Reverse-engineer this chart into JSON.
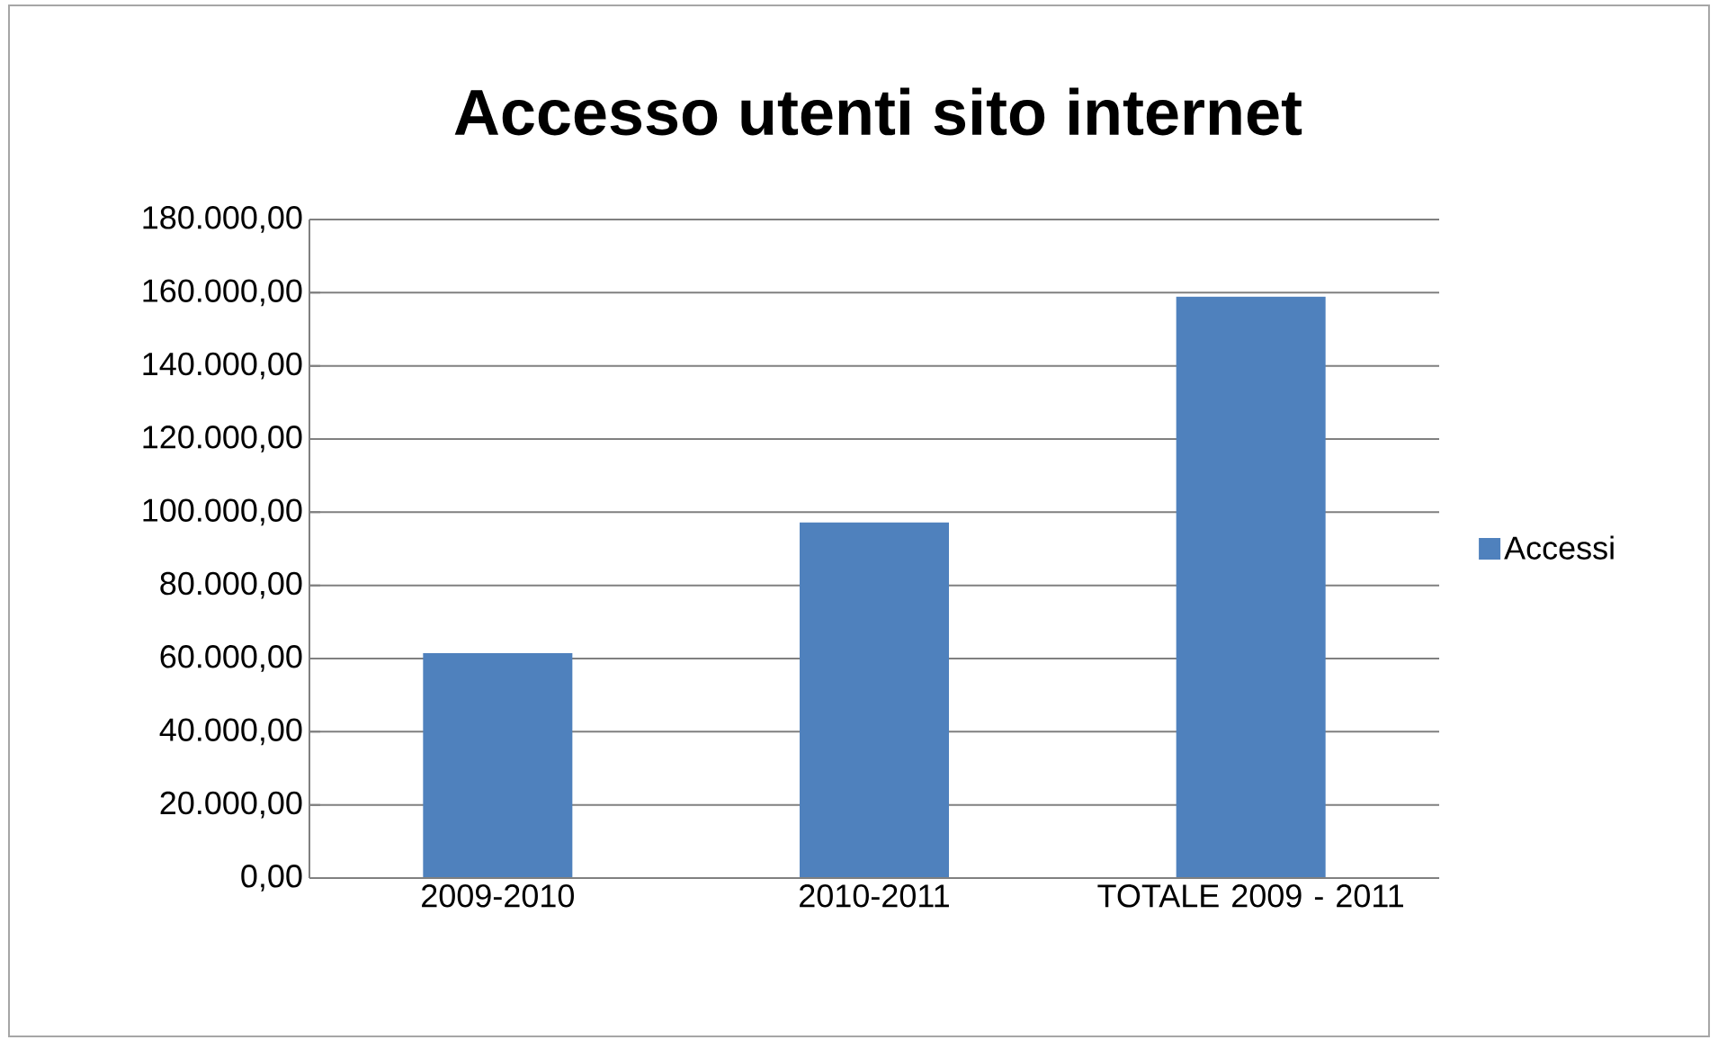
{
  "chart_data": {
    "type": "bar",
    "title": "Accesso utenti sito internet",
    "categories": [
      "2009-2010",
      "2010-2011",
      "TOTALE 2009 - 2011"
    ],
    "series": [
      {
        "name": "Accessi",
        "color": "#4f81bd",
        "values": [
          61500,
          97200,
          158900
        ]
      }
    ],
    "ylim": [
      0,
      180000
    ],
    "yticks": [
      {
        "value": 0,
        "label": "0,00"
      },
      {
        "value": 20000,
        "label": "20.000,00"
      },
      {
        "value": 40000,
        "label": "40.000,00"
      },
      {
        "value": 60000,
        "label": "60.000,00"
      },
      {
        "value": 80000,
        "label": "80.000,00"
      },
      {
        "value": 100000,
        "label": "100.000,00"
      },
      {
        "value": 120000,
        "label": "120.000,00"
      },
      {
        "value": 140000,
        "label": "140.000,00"
      },
      {
        "value": 160000,
        "label": "160.000,00"
      },
      {
        "value": 180000,
        "label": "180.000,00"
      }
    ],
    "grid": "y",
    "legend": "right"
  }
}
